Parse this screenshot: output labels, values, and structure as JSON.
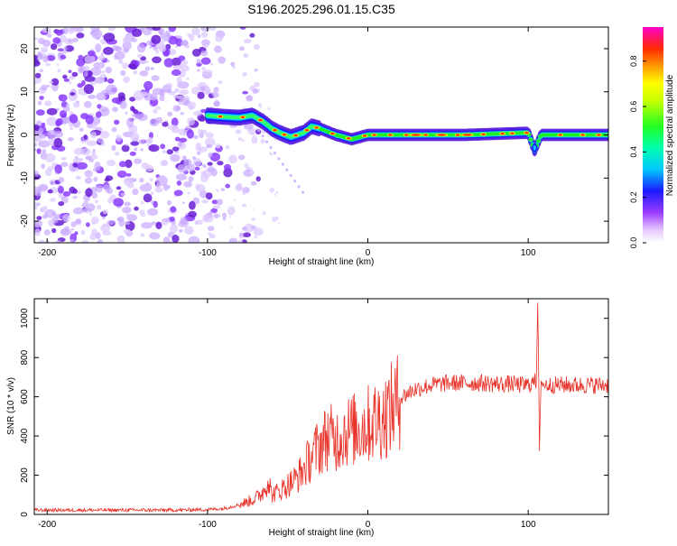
{
  "title": "S196.2025.296.01.15.C35",
  "chart_data": [
    {
      "type": "heatmap",
      "xlabel": "Height of straight line (km)",
      "ylabel": "Frequency (Hz)",
      "xlim": [
        -208,
        150
      ],
      "ylim": [
        -25,
        25
      ],
      "xticks": [
        -200,
        -100,
        0,
        100
      ],
      "yticks": [
        -20,
        -10,
        0,
        10,
        20
      ],
      "xtick_labels": [
        "-200",
        "-100",
        "0",
        "100"
      ],
      "ytick_labels": [
        "-20",
        "-10",
        "0",
        "10",
        "20"
      ],
      "noise_region_x": [
        -208,
        -80
      ],
      "signal_start_x": -100,
      "signal_ridge": [
        {
          "x": -100,
          "f": 4.5
        },
        {
          "x": -90,
          "f": 4.2
        },
        {
          "x": -80,
          "f": 4.0
        },
        {
          "x": -72,
          "f": 4.5
        },
        {
          "x": -65,
          "f": 3.0
        },
        {
          "x": -60,
          "f": 1.5
        },
        {
          "x": -55,
          "f": 0.5
        },
        {
          "x": -48,
          "f": -0.5
        },
        {
          "x": -40,
          "f": 0.5
        },
        {
          "x": -35,
          "f": 2.0
        },
        {
          "x": -30,
          "f": 1.5
        },
        {
          "x": -20,
          "f": 0.0
        },
        {
          "x": -10,
          "f": -1.0
        },
        {
          "x": -5,
          "f": -0.5
        },
        {
          "x": 0,
          "f": 0.0
        },
        {
          "x": 20,
          "f": 0.0
        },
        {
          "x": 60,
          "f": 0.0
        },
        {
          "x": 100,
          "f": 0.5
        },
        {
          "x": 104,
          "f": -3.5
        },
        {
          "x": 108,
          "f": 0.0
        },
        {
          "x": 150,
          "f": 0.0
        }
      ],
      "colorbar": {
        "label": "Normalized spectral amplitude",
        "range": [
          0,
          0.95
        ],
        "ticks": [
          0,
          0.2,
          0.4,
          0.6,
          0.8
        ],
        "tick_labels": [
          "0.0",
          "0.2",
          "0.4",
          "0.6",
          "0.8"
        ]
      }
    },
    {
      "type": "line",
      "xlabel": "Height of straight line (km)",
      "ylabel": "SNR (10 * v/v)",
      "xlim": [
        -208,
        150
      ],
      "ylim": [
        0,
        1100
      ],
      "xticks": [
        -200,
        -100,
        0,
        100
      ],
      "yticks": [
        0,
        200,
        400,
        600,
        800,
        1000
      ],
      "xtick_labels": [
        "-200",
        "-100",
        "0",
        "100"
      ],
      "ytick_labels": [
        "0",
        "200",
        "400",
        "600",
        "800",
        "1000"
      ],
      "series": [
        {
          "name": "SNR",
          "color": "#e8332a",
          "x": [
            -208,
            -180,
            -150,
            -120,
            -100,
            -90,
            -80,
            -70,
            -65,
            -62,
            -60,
            -55,
            -50,
            -45,
            -40,
            -35,
            -30,
            -25,
            -20,
            -15,
            -10,
            -5,
            0,
            5,
            10,
            15,
            20,
            25,
            30,
            40,
            50,
            60,
            70,
            80,
            90,
            95,
            100,
            105,
            106,
            107,
            108,
            110,
            120,
            130,
            140,
            150
          ],
          "y": [
            22,
            22,
            22,
            22,
            25,
            30,
            50,
            80,
            120,
            180,
            100,
            120,
            150,
            180,
            230,
            300,
            350,
            400,
            380,
            420,
            430,
            440,
            460,
            480,
            500,
            540,
            590,
            620,
            640,
            660,
            670,
            670,
            670,
            665,
            665,
            660,
            660,
            680,
            1100,
            330,
            680,
            660,
            660,
            660,
            660,
            660
          ]
        }
      ]
    }
  ],
  "colors": {
    "axes": "#000000",
    "line": "#e8332a",
    "noise": "#8a2be2"
  }
}
